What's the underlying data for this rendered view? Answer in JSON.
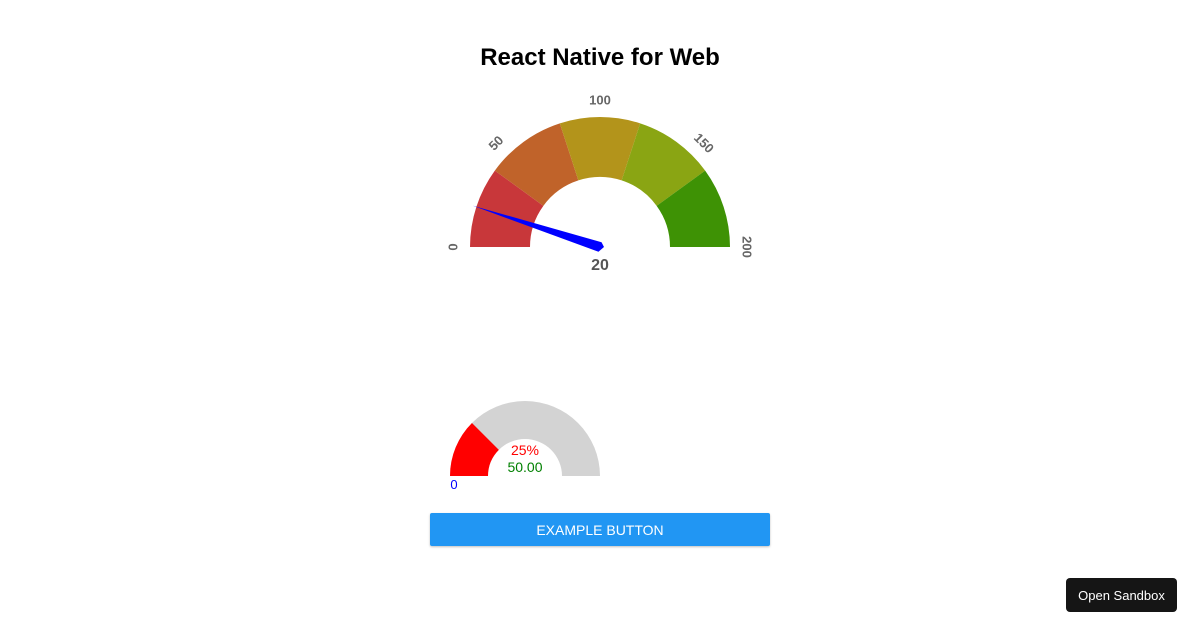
{
  "title": "React Native for Web",
  "speedometer": {
    "min": 0,
    "max": 200,
    "value": 20,
    "value_label": "20",
    "labels": [
      "0",
      "50",
      "100",
      "150",
      "200"
    ],
    "segment_colors": [
      "#c8373a",
      "#c0632a",
      "#b3941b",
      "#8aa513",
      "#3e9205"
    ],
    "needle_color": "#0000ff",
    "label_color": "#666666"
  },
  "mini_gauge": {
    "percent": 25,
    "percent_label": "25%",
    "value_label": "50.00",
    "min_label": "0",
    "fill_color": "#ff0000",
    "track_color": "#d3d3d3",
    "percent_color": "#ff0000",
    "value_color": "#008000",
    "min_color": "#0000ff"
  },
  "button": {
    "label": "EXAMPLE BUTTON",
    "color": "#2196f3"
  },
  "sandbox": {
    "label": "Open Sandbox"
  }
}
